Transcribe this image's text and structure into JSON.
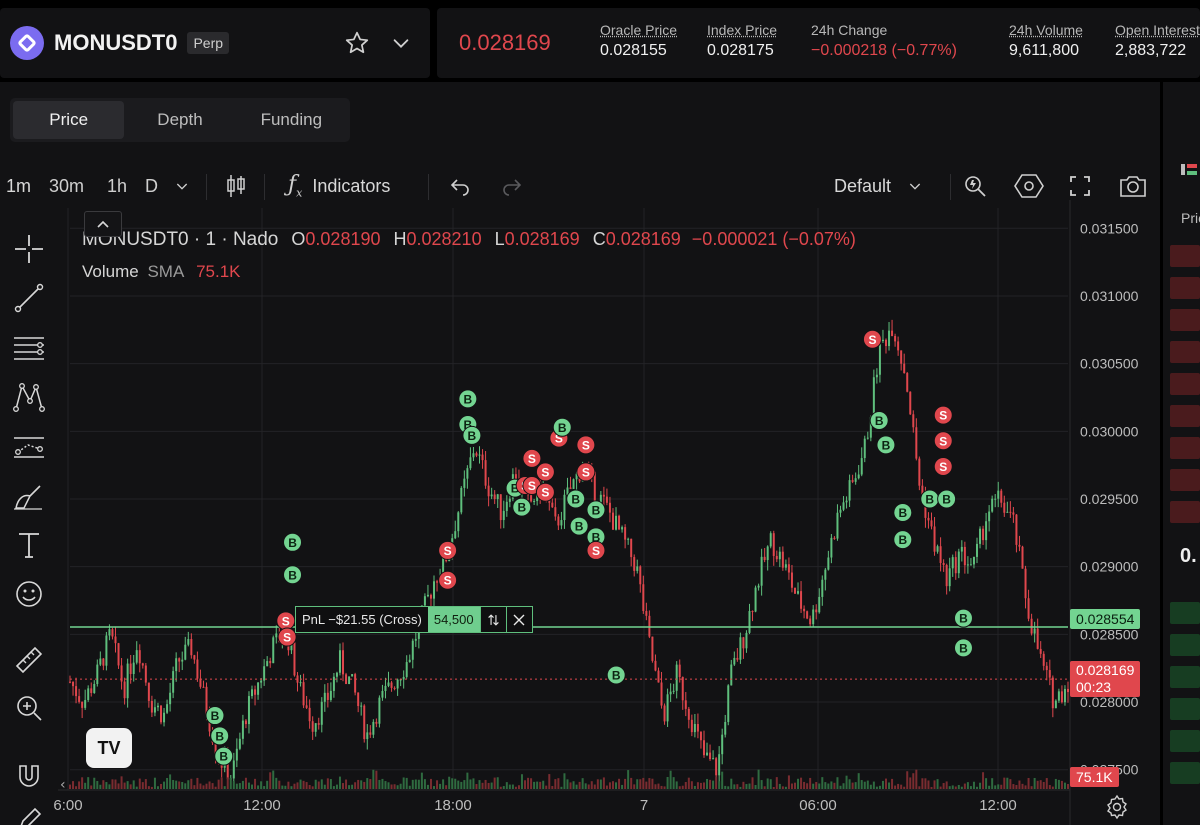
{
  "header": {
    "market": "MONUSDT0",
    "badge": "Perp",
    "last_price": "0.028169",
    "stats": [
      {
        "label": "Oracle Price",
        "value": "0.028155",
        "tone": "normal"
      },
      {
        "label": "Index Price",
        "value": "0.028175",
        "tone": "normal"
      },
      {
        "label": "24h Change",
        "value": "−0.000218 (−0.77%)",
        "tone": "neg"
      },
      {
        "label": "24h Volume",
        "value": "9,611,800",
        "tone": "normal"
      },
      {
        "label": "Open Interest",
        "value": "2,883,722",
        "tone": "normal"
      }
    ]
  },
  "tabs": [
    "Price",
    "Depth",
    "Funding"
  ],
  "toolbar": {
    "intervals": [
      "1m",
      "30m",
      "1h",
      "D"
    ],
    "indicators_label": "Indicators",
    "layout_label": "Default"
  },
  "chart_overlay": {
    "symbol_line": "MONUSDT0 · 1 · Nado",
    "o_label": "O",
    "o_value": "0.028190",
    "h_label": "H",
    "h_value": "0.028210",
    "l_label": "L",
    "l_value": "0.028169",
    "c_label": "C",
    "c_value": "0.028169",
    "change": "−0.000021 (−0.07%)",
    "volume_label": "Volume",
    "sma_label": "SMA",
    "volume_value": "75.1K"
  },
  "position": {
    "pnl_text": "PnL −$21.55 (Cross)",
    "size": "54,500",
    "entry_price_tag": "0.028554"
  },
  "current_price_tag": {
    "price": "0.028169",
    "countdown": "00:23"
  },
  "volume_tag": "75.1K",
  "right_panel": {
    "header": "Pric",
    "mid": "0."
  },
  "colors": {
    "up": "#5fbf7d",
    "down": "#e0474d",
    "bg": "#121214"
  },
  "chart_data": {
    "type": "candlestick",
    "title": "MONUSDT0 · 1 · Nado",
    "y_ticks": [
      "0.031500",
      "0.031000",
      "0.030500",
      "0.030000",
      "0.029500",
      "0.029000",
      "0.028500",
      "0.028000",
      "0.027500"
    ],
    "y_tick_values": [
      0.0315,
      0.031,
      0.0305,
      0.03,
      0.0295,
      0.029,
      0.0285,
      0.028,
      0.0275
    ],
    "ylim": [
      0.02735,
      0.03165
    ],
    "x_ticks": [
      "6:00",
      "12:00",
      "18:00",
      "7",
      "06:00",
      "12:00"
    ],
    "price_path": [
      [
        0,
        0.02815
      ],
      [
        2,
        0.028
      ],
      [
        4,
        0.0282
      ],
      [
        6,
        0.0285
      ],
      [
        8,
        0.0281
      ],
      [
        10,
        0.02845
      ],
      [
        12,
        0.028
      ],
      [
        14,
        0.0279
      ],
      [
        16,
        0.0283
      ],
      [
        18,
        0.0284
      ],
      [
        20,
        0.028
      ],
      [
        22,
        0.0276
      ],
      [
        24,
        0.02745
      ],
      [
        26,
        0.0279
      ],
      [
        28,
        0.02815
      ],
      [
        30,
        0.0284
      ],
      [
        32,
        0.02855
      ],
      [
        34,
        0.0281
      ],
      [
        36,
        0.02785
      ],
      [
        38,
        0.028
      ],
      [
        40,
        0.0283
      ],
      [
        42,
        0.0281
      ],
      [
        44,
        0.02775
      ],
      [
        46,
        0.028
      ],
      [
        48,
        0.02815
      ],
      [
        50,
        0.0283
      ],
      [
        52,
        0.0286
      ],
      [
        54,
        0.0289
      ],
      [
        56,
        0.0291
      ],
      [
        58,
        0.0295
      ],
      [
        60,
        0.0299
      ],
      [
        62,
        0.0296
      ],
      [
        64,
        0.0294
      ],
      [
        66,
        0.0297
      ],
      [
        68,
        0.02945
      ],
      [
        70,
        0.0296
      ],
      [
        72,
        0.0293
      ],
      [
        74,
        0.02955
      ],
      [
        76,
        0.02975
      ],
      [
        78,
        0.02955
      ],
      [
        80,
        0.0294
      ],
      [
        82,
        0.0292
      ],
      [
        84,
        0.029
      ],
      [
        86,
        0.0284
      ],
      [
        88,
        0.0279
      ],
      [
        90,
        0.0282
      ],
      [
        92,
        0.0279
      ],
      [
        94,
        0.0276
      ],
      [
        96,
        0.0275
      ],
      [
        98,
        0.0282
      ],
      [
        100,
        0.0285
      ],
      [
        102,
        0.0289
      ],
      [
        104,
        0.0292
      ],
      [
        106,
        0.029
      ],
      [
        108,
        0.02875
      ],
      [
        110,
        0.0286
      ],
      [
        112,
        0.029
      ],
      [
        114,
        0.0294
      ],
      [
        116,
        0.0296
      ],
      [
        118,
        0.0299
      ],
      [
        120,
        0.0306
      ],
      [
        122,
        0.0308
      ],
      [
        124,
        0.0304
      ],
      [
        126,
        0.0296
      ],
      [
        128,
        0.0292
      ],
      [
        130,
        0.0289
      ],
      [
        132,
        0.0291
      ],
      [
        134,
        0.029
      ],
      [
        136,
        0.0294
      ],
      [
        138,
        0.0295
      ],
      [
        140,
        0.0293
      ],
      [
        142,
        0.0287
      ],
      [
        144,
        0.0283
      ],
      [
        146,
        0.028
      ],
      [
        148,
        0.02815
      ]
    ],
    "markers": [
      {
        "side": "B",
        "t": 21.5,
        "p": 0.0279
      },
      {
        "side": "B",
        "t": 22.2,
        "p": 0.02775
      },
      {
        "side": "B",
        "t": 22.8,
        "p": 0.0276
      },
      {
        "side": "S",
        "t": 32.0,
        "p": 0.0286
      },
      {
        "side": "S",
        "t": 32.2,
        "p": 0.02848
      },
      {
        "side": "B",
        "t": 33.0,
        "p": 0.02918
      },
      {
        "side": "B",
        "t": 33.0,
        "p": 0.02894
      },
      {
        "side": "S",
        "t": 56.0,
        "p": 0.02912
      },
      {
        "side": "S",
        "t": 56.0,
        "p": 0.0289
      },
      {
        "side": "B",
        "t": 59.0,
        "p": 0.03024
      },
      {
        "side": "B",
        "t": 59.0,
        "p": 0.03005
      },
      {
        "side": "B",
        "t": 59.6,
        "p": 0.02997
      },
      {
        "side": "B",
        "t": 66.0,
        "p": 0.02958
      },
      {
        "side": "S",
        "t": 67.5,
        "p": 0.0296
      },
      {
        "side": "B",
        "t": 67.0,
        "p": 0.02944
      },
      {
        "side": "S",
        "t": 68.5,
        "p": 0.0298
      },
      {
        "side": "S",
        "t": 68.5,
        "p": 0.0296
      },
      {
        "side": "S",
        "t": 70.5,
        "p": 0.0297
      },
      {
        "side": "S",
        "t": 70.5,
        "p": 0.02955
      },
      {
        "side": "S",
        "t": 72.5,
        "p": 0.02995
      },
      {
        "side": "B",
        "t": 73.0,
        "p": 0.03003
      },
      {
        "side": "S",
        "t": 76.5,
        "p": 0.0299
      },
      {
        "side": "S",
        "t": 76.5,
        "p": 0.0297
      },
      {
        "side": "B",
        "t": 75.0,
        "p": 0.0295
      },
      {
        "side": "B",
        "t": 75.5,
        "p": 0.0293
      },
      {
        "side": "B",
        "t": 78.0,
        "p": 0.02942
      },
      {
        "side": "B",
        "t": 78.0,
        "p": 0.02922
      },
      {
        "side": "S",
        "t": 78.0,
        "p": 0.02912
      },
      {
        "side": "B",
        "t": 81.0,
        "p": 0.0282
      },
      {
        "side": "S",
        "t": 119.0,
        "p": 0.03068
      },
      {
        "side": "B",
        "t": 120.0,
        "p": 0.03008
      },
      {
        "side": "B",
        "t": 121.0,
        "p": 0.0299
      },
      {
        "side": "B",
        "t": 123.5,
        "p": 0.0294
      },
      {
        "side": "B",
        "t": 123.5,
        "p": 0.0292
      },
      {
        "side": "B",
        "t": 127.5,
        "p": 0.0295
      },
      {
        "side": "B",
        "t": 130.0,
        "p": 0.0295
      },
      {
        "side": "S",
        "t": 129.5,
        "p": 0.03012
      },
      {
        "side": "S",
        "t": 129.5,
        "p": 0.02993
      },
      {
        "side": "S",
        "t": 129.5,
        "p": 0.02974
      },
      {
        "side": "B",
        "t": 132.5,
        "p": 0.02862
      },
      {
        "side": "B",
        "t": 132.5,
        "p": 0.0284
      }
    ],
    "entry_price": 0.028554,
    "current_price": 0.028169,
    "volume_sma": "75.1K"
  }
}
